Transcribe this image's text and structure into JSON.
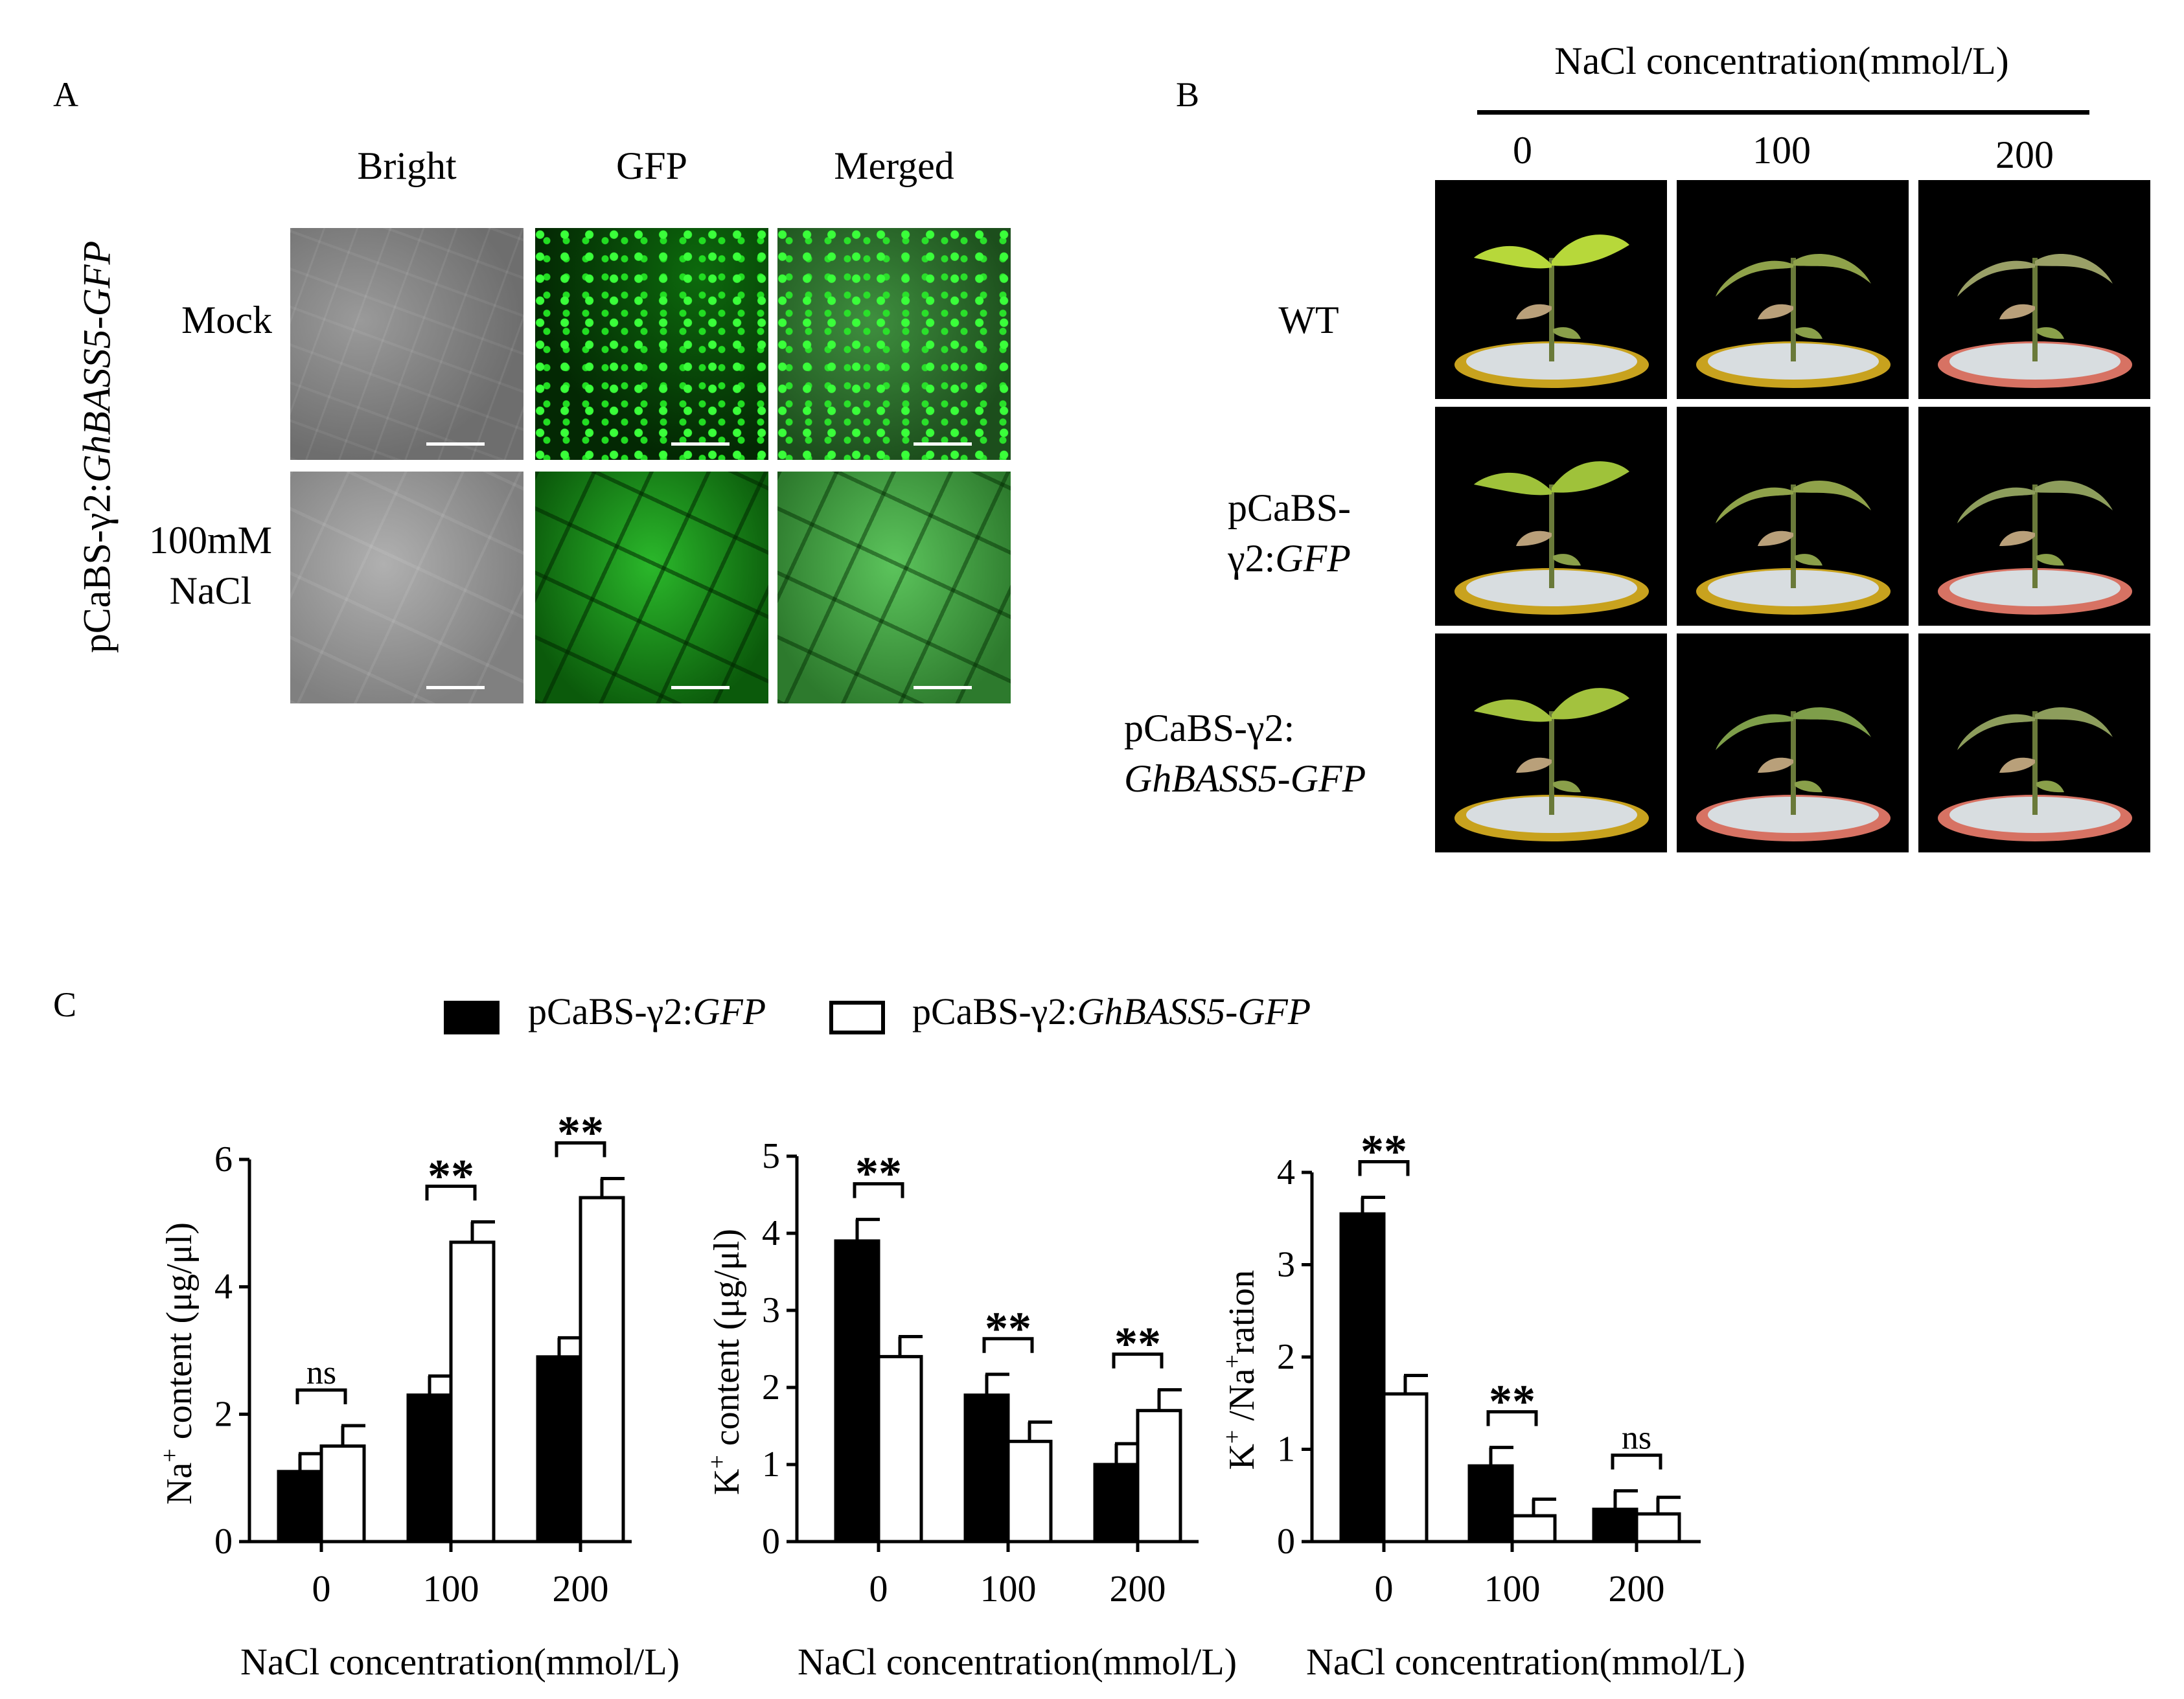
{
  "panels": {
    "a": "A",
    "b": "B",
    "c": "C"
  },
  "panel_a": {
    "columns": [
      "Bright",
      "GFP",
      "Merged"
    ],
    "rows": [
      "Mock",
      "100mM",
      "NaCl"
    ],
    "side_label_prefix": "pCaBS-γ2:",
    "side_label_gene": "GhBASS5-GFP"
  },
  "panel_b": {
    "header": "NaCl concentration(mmol/L)",
    "concentrations": [
      "0",
      "100",
      "200"
    ],
    "rows": {
      "wt": "WT",
      "gfp_line1": "pCaBS-",
      "gfp_line2_prefix": "γ2:",
      "gfp_line2_gene": "GFP",
      "bass_line1": "pCaBS-γ2:",
      "bass_line2": "GhBASS5-GFP"
    }
  },
  "legend": {
    "series1_prefix": "pCaBS-γ2:",
    "series1_gene": "GFP",
    "series2_prefix": "pCaBS-γ2:",
    "series2_gene": "GhBASS5-GFP",
    "colors": {
      "series1": "#000000",
      "series2": "#ffffff"
    }
  },
  "chart_data": [
    {
      "type": "bar",
      "categories": [
        "0",
        "100",
        "200"
      ],
      "xlabel": "NaCl concentration(mmol/L)",
      "ylabel_main": "Na",
      "ylabel_sup": "+",
      "ylabel_rest": " content (μg/μl)",
      "ylim": [
        0,
        6
      ],
      "yticks": [
        "0",
        "2",
        "4",
        "6"
      ],
      "series": [
        {
          "values": [
            1.1,
            2.3,
            2.9
          ],
          "errors": [
            0.28,
            0.3,
            0.3
          ]
        },
        {
          "values": [
            1.5,
            4.7,
            5.4
          ],
          "errors": [
            0.32,
            0.32,
            0.3
          ]
        }
      ],
      "significance": [
        "ns",
        "**",
        "**"
      ]
    },
    {
      "type": "bar",
      "categories": [
        "0",
        "100",
        "200"
      ],
      "xlabel": "NaCl concentration(mmol/L)",
      "ylabel_main": "K",
      "ylabel_sup": "+",
      "ylabel_rest": " content (μg/μl)",
      "ylim": [
        0,
        5
      ],
      "yticks": [
        "0",
        "1",
        "2",
        "3",
        "4",
        "5"
      ],
      "series": [
        {
          "values": [
            3.9,
            1.9,
            1.0
          ],
          "errors": [
            0.28,
            0.27,
            0.27
          ]
        },
        {
          "values": [
            2.4,
            1.3,
            1.7
          ],
          "errors": [
            0.26,
            0.25,
            0.27
          ]
        }
      ],
      "significance": [
        "**",
        "**",
        "**"
      ]
    },
    {
      "type": "bar",
      "categories": [
        "0",
        "100",
        "200"
      ],
      "xlabel": "NaCl concentration(mmol/L)",
      "ylabel_main": "K",
      "ylabel_sup": "+",
      "ylabel_rest": " /Na",
      "ylabel_sup2": "+",
      "ylabel_rest2": "ration",
      "ylim": [
        0,
        4
      ],
      "yticks": [
        "0",
        "1",
        "2",
        "3",
        "4"
      ],
      "series": [
        {
          "values": [
            3.55,
            0.82,
            0.35
          ],
          "errors": [
            0.18,
            0.2,
            0.2
          ]
        },
        {
          "values": [
            1.6,
            0.28,
            0.3
          ],
          "errors": [
            0.2,
            0.18,
            0.18
          ]
        }
      ],
      "significance": [
        "**",
        "**",
        "ns"
      ]
    }
  ]
}
